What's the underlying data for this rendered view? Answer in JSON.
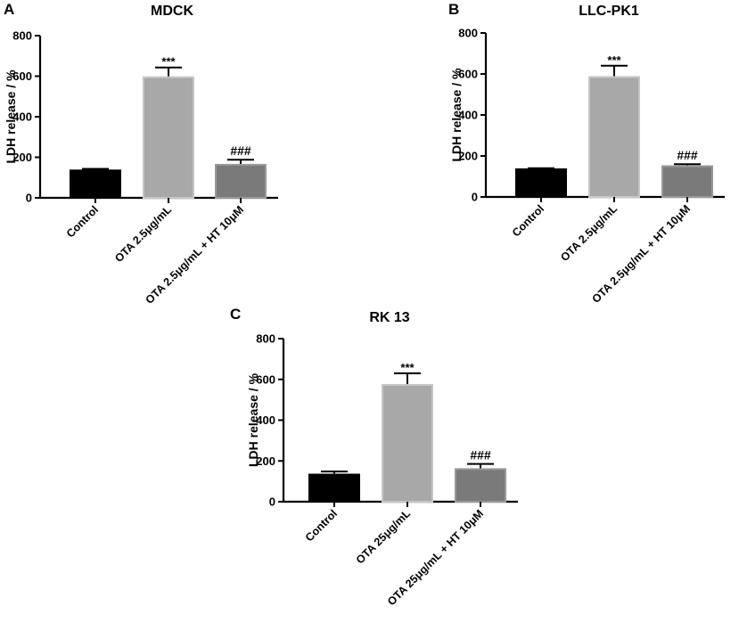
{
  "chart_data": [
    {
      "type": "bar",
      "panel_letter": "A",
      "title": "MDCK",
      "ylabel": "LDH release / %",
      "xlabel": "",
      "ylim": [
        0,
        800
      ],
      "yticks": [
        0,
        200,
        400,
        600,
        800
      ],
      "categories": [
        "Control",
        "OTA 2.5μg/mL",
        "OTA 2.5μg/mL + HT 10μM"
      ],
      "values": [
        135,
        595,
        163
      ],
      "errors": [
        8,
        48,
        25
      ],
      "annotations": [
        "",
        "***",
        "###"
      ],
      "colors": [
        "#000000",
        "#a8a8a8",
        "#7a7a7a"
      ],
      "grid": false
    },
    {
      "type": "bar",
      "panel_letter": "B",
      "title": "LLC-PK1",
      "ylabel": "LDH release / %",
      "xlabel": "",
      "ylim": [
        0,
        800
      ],
      "yticks": [
        0,
        200,
        400,
        600,
        800
      ],
      "categories": [
        "Control",
        "OTA 2.5μg/mL",
        "OTA 2.5μg/mL + HT 10μM"
      ],
      "values": [
        135,
        585,
        150
      ],
      "errors": [
        5,
        55,
        10
      ],
      "annotations": [
        "",
        "***",
        "###"
      ],
      "colors": [
        "#000000",
        "#a8a8a8",
        "#7a7a7a"
      ],
      "grid": false
    },
    {
      "type": "bar",
      "panel_letter": "C",
      "title": "RK 13",
      "ylabel": "LDH release / %",
      "xlabel": "",
      "ylim": [
        0,
        800
      ],
      "yticks": [
        0,
        200,
        400,
        600,
        800
      ],
      "categories": [
        "Control",
        "OTA 25μg/mL",
        "OTA 25μg/mL + HT 10μM"
      ],
      "values": [
        133,
        573,
        160
      ],
      "errors": [
        15,
        57,
        25
      ],
      "annotations": [
        "",
        "***",
        "###"
      ],
      "colors": [
        "#000000",
        "#a8a8a8",
        "#7a7a7a"
      ],
      "grid": false
    }
  ]
}
